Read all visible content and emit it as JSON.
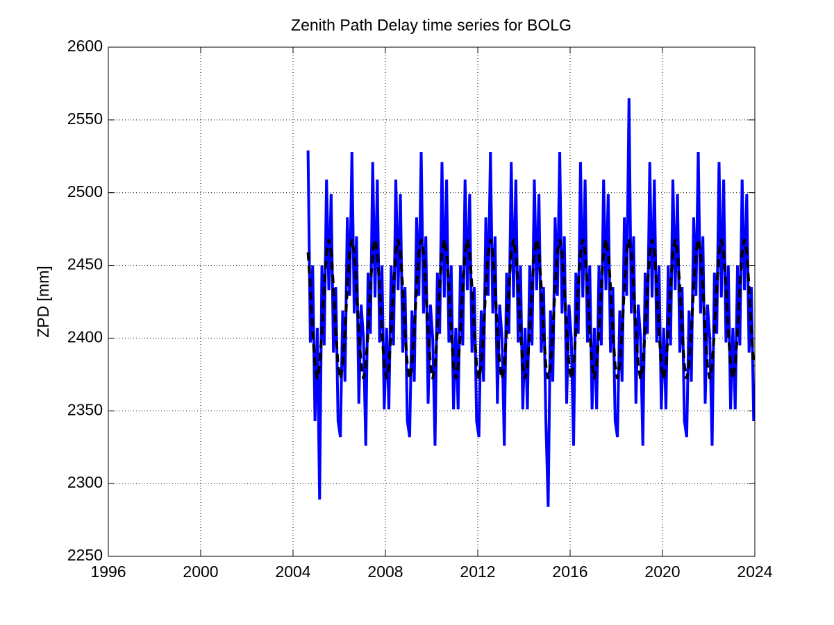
{
  "chart_data": {
    "type": "line",
    "title": "Zenith Path Delay time series for BOLG",
    "y_label": "ZPD [mm]",
    "xlim": [
      1996,
      2024
    ],
    "xticks": [
      1996,
      2000,
      2004,
      2008,
      2012,
      2016,
      2020,
      2024
    ],
    "ylim": [
      2250,
      2600
    ],
    "yticks": [
      2250,
      2300,
      2350,
      2400,
      2450,
      2500,
      2550,
      2600
    ],
    "grid": true,
    "x": [
      2004.65,
      2004.75,
      2004.85,
      2004.95,
      2005.05,
      2005.15,
      2005.25,
      2005.35,
      2005.45,
      2005.55,
      2005.65,
      2005.75,
      2005.85,
      2005.95,
      2006.05,
      2006.15,
      2006.25,
      2006.35,
      2006.45,
      2006.55,
      2006.65,
      2006.75,
      2006.85,
      2006.95,
      2007.05,
      2007.15,
      2007.25,
      2007.35,
      2007.45,
      2007.55,
      2007.65,
      2007.75,
      2007.85,
      2007.95,
      2008.05,
      2008.15,
      2008.25,
      2008.35,
      2008.45,
      2008.55,
      2008.65,
      2008.75,
      2008.85,
      2008.95,
      2009.05,
      2009.15,
      2009.25,
      2009.35,
      2009.45,
      2009.55,
      2009.65,
      2009.75,
      2009.85,
      2009.95,
      2010.05,
      2010.15,
      2010.25,
      2010.35,
      2010.45,
      2010.55,
      2010.65,
      2010.75,
      2010.85,
      2010.95,
      2011.05,
      2011.15,
      2011.25,
      2011.35,
      2011.45,
      2011.55,
      2011.65,
      2011.75,
      2011.85,
      2011.95,
      2012.05,
      2012.15,
      2012.25,
      2012.35,
      2012.45,
      2012.55,
      2012.65,
      2012.75,
      2012.85,
      2012.95,
      2013.05,
      2013.15,
      2013.25,
      2013.35,
      2013.45,
      2013.55,
      2013.65,
      2013.75,
      2013.85,
      2013.95,
      2014.05,
      2014.15,
      2014.25,
      2014.35,
      2014.45,
      2014.55,
      2014.65,
      2014.75,
      2014.85,
      2014.95,
      2015.05,
      2015.15,
      2015.25,
      2015.35,
      2015.45,
      2015.55,
      2015.65,
      2015.75,
      2015.85,
      2015.95,
      2016.05,
      2016.15,
      2016.25,
      2016.35,
      2016.45,
      2016.55,
      2016.65,
      2016.75,
      2016.85,
      2016.95,
      2017.05,
      2017.15,
      2017.25,
      2017.35,
      2017.45,
      2017.55,
      2017.65,
      2017.75,
      2017.85,
      2017.95,
      2018.05,
      2018.15,
      2018.25,
      2018.35,
      2018.45,
      2018.55,
      2018.65,
      2018.75,
      2018.85,
      2018.95,
      2019.05,
      2019.15,
      2019.25,
      2019.35,
      2019.45,
      2019.55,
      2019.65,
      2019.75,
      2019.85,
      2019.95,
      2020.05,
      2020.15,
      2020.25,
      2020.35,
      2020.45,
      2020.55,
      2020.65,
      2020.75,
      2020.85,
      2020.95,
      2021.05,
      2021.15,
      2021.25,
      2021.35,
      2021.45,
      2021.55,
      2021.65,
      2021.75,
      2021.85,
      2021.95,
      2022.05,
      2022.15,
      2022.25,
      2022.35,
      2022.45,
      2022.55,
      2022.65,
      2022.75,
      2022.85,
      2022.95,
      2023.05,
      2023.15,
      2023.25,
      2023.35,
      2023.45,
      2023.55,
      2023.65,
      2023.75,
      2023.85,
      2023.95
    ],
    "series": [
      {
        "color": "#0000ff",
        "width": 4,
        "dash": false,
        "values": [
          2529,
          2397,
          2450,
          2343,
          2407,
          2289,
          2450,
          2395,
          2509,
          2433,
          2499,
          2390,
          2435,
          2343,
          2332,
          2419,
          2370,
          2483,
          2429,
          2528,
          2417,
          2470,
          2355,
          2423,
          2400,
          2326,
          2445,
          2403,
          2521,
          2428,
          2509,
          2397,
          2450,
          2351,
          2407,
          2351,
          2450,
          2395,
          2509,
          2433,
          2499,
          2390,
          2435,
          2343,
          2332,
          2419,
          2370,
          2483,
          2429,
          2528,
          2417,
          2470,
          2355,
          2423,
          2400,
          2326,
          2445,
          2403,
          2521,
          2428,
          2509,
          2397,
          2450,
          2351,
          2407,
          2351,
          2450,
          2395,
          2509,
          2433,
          2499,
          2390,
          2435,
          2343,
          2332,
          2419,
          2370,
          2483,
          2429,
          2528,
          2417,
          2470,
          2355,
          2423,
          2400,
          2326,
          2445,
          2403,
          2521,
          2428,
          2509,
          2397,
          2450,
          2351,
          2407,
          2351,
          2450,
          2395,
          2509,
          2433,
          2499,
          2390,
          2435,
          2343,
          2284,
          2419,
          2370,
          2483,
          2429,
          2528,
          2417,
          2470,
          2355,
          2423,
          2400,
          2326,
          2445,
          2403,
          2521,
          2428,
          2509,
          2397,
          2450,
          2351,
          2407,
          2351,
          2450,
          2395,
          2509,
          2433,
          2499,
          2390,
          2435,
          2343,
          2332,
          2419,
          2370,
          2483,
          2429,
          2565,
          2417,
          2470,
          2355,
          2423,
          2400,
          2326,
          2445,
          2403,
          2521,
          2428,
          2509,
          2397,
          2450,
          2351,
          2407,
          2351,
          2450,
          2395,
          2509,
          2433,
          2499,
          2390,
          2435,
          2343,
          2332,
          2419,
          2370,
          2483,
          2429,
          2528,
          2417,
          2470,
          2355,
          2423,
          2400,
          2326,
          2445,
          2403,
          2521,
          2428,
          2509,
          2397,
          2450,
          2351,
          2407,
          2351,
          2450,
          2395,
          2509,
          2433,
          2499,
          2390,
          2435,
          2343
        ]
      },
      {
        "color": "#000000",
        "width": 4,
        "dash": true,
        "values": [
          2459,
          2435,
          2405,
          2381,
          2372,
          2381,
          2405,
          2435,
          2459,
          2468,
          2459,
          2435,
          2405,
          2381,
          2372,
          2381,
          2405,
          2435,
          2459,
          2468,
          2459,
          2435,
          2405,
          2381,
          2372,
          2381,
          2405,
          2435,
          2459,
          2468,
          2459,
          2435,
          2405,
          2381,
          2372,
          2381,
          2405,
          2435,
          2459,
          2468,
          2459,
          2435,
          2405,
          2381,
          2372,
          2381,
          2405,
          2435,
          2459,
          2468,
          2459,
          2435,
          2405,
          2381,
          2372,
          2381,
          2405,
          2435,
          2459,
          2468,
          2459,
          2435,
          2405,
          2381,
          2372,
          2381,
          2405,
          2435,
          2459,
          2468,
          2459,
          2435,
          2405,
          2381,
          2372,
          2381,
          2405,
          2435,
          2459,
          2468,
          2459,
          2435,
          2405,
          2381,
          2372,
          2381,
          2405,
          2435,
          2459,
          2468,
          2459,
          2435,
          2405,
          2381,
          2372,
          2381,
          2405,
          2435,
          2459,
          2468,
          2459,
          2435,
          2405,
          2381,
          2372,
          2381,
          2405,
          2435,
          2459,
          2468,
          2459,
          2435,
          2405,
          2381,
          2372,
          2381,
          2405,
          2435,
          2459,
          2468,
          2459,
          2435,
          2405,
          2381,
          2372,
          2381,
          2405,
          2435,
          2459,
          2468,
          2459,
          2435,
          2405,
          2381,
          2372,
          2381,
          2405,
          2435,
          2459,
          2468,
          2459,
          2435,
          2405,
          2381,
          2372,
          2381,
          2405,
          2435,
          2459,
          2468,
          2459,
          2435,
          2405,
          2381,
          2372,
          2381,
          2405,
          2435,
          2459,
          2468,
          2459,
          2435,
          2405,
          2381,
          2372,
          2381,
          2405,
          2435,
          2459,
          2468,
          2459,
          2435,
          2405,
          2381,
          2372,
          2381,
          2405,
          2435,
          2459,
          2468,
          2459,
          2435,
          2405,
          2381,
          2372,
          2381,
          2405,
          2435,
          2459,
          2468,
          2459,
          2435,
          2405,
          2381
        ]
      }
    ]
  }
}
